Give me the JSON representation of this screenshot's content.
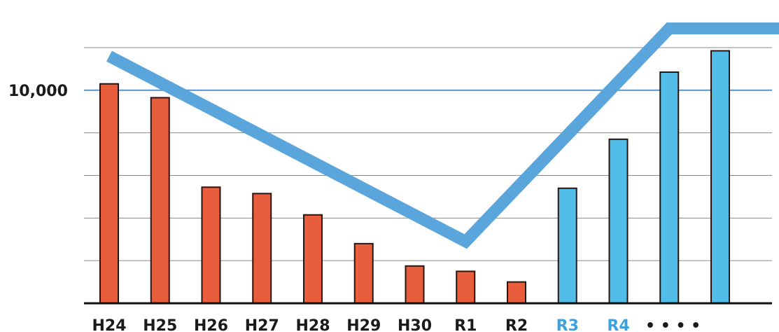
{
  "chart_data": {
    "type": "bar",
    "title": "",
    "xlabel": "",
    "ylabel": "",
    "categories": [
      "H24",
      "H25",
      "H26",
      "H27",
      "H28",
      "H29",
      "H30",
      "R1",
      "R2",
      "R3",
      "R4",
      "",
      ""
    ],
    "values": [
      10300,
      9650,
      5450,
      5150,
      4150,
      2800,
      1750,
      1500,
      1000,
      5400,
      7700,
      10850,
      11850
    ],
    "bar_colors": [
      "#e85d3c",
      "#e85d3c",
      "#e85d3c",
      "#e85d3c",
      "#e85d3c",
      "#e85d3c",
      "#e85d3c",
      "#e85d3c",
      "#e85d3c",
      "#52bde9",
      "#52bde9",
      "#52bde9",
      "#52bde9"
    ],
    "label_colors": [
      "#1a1a1a",
      "#1a1a1a",
      "#1a1a1a",
      "#1a1a1a",
      "#1a1a1a",
      "#1a1a1a",
      "#1a1a1a",
      "#1a1a1a",
      "#1a1a1a",
      "#3aa3df",
      "#3aa3df",
      "#1a1a1a",
      "#1a1a1a"
    ],
    "ylim": [
      0,
      12000
    ],
    "y_tick_labels": [
      {
        "value": 10000,
        "label": "10,000"
      }
    ],
    "gridlines": [
      2000,
      4000,
      6000,
      8000,
      10000,
      12000
    ],
    "highlight_gridline": 10000,
    "trailing_marker": "• • • •",
    "grid": true,
    "legend": "none",
    "trend_arrow": {
      "color": "#5aa6dc",
      "points": [
        {
          "x_index": 0,
          "y": 11600
        },
        {
          "x_index": 7,
          "y": 2900
        },
        {
          "x_index": 11.0,
          "y": 12900
        },
        {
          "x_index": 13.9,
          "y": 12900
        }
      ]
    },
    "colors": {
      "past": "#e85d3c",
      "future": "#52bde9",
      "bar_outline": "#2a1410",
      "grid": "#8a8a8a",
      "highlight_grid": "#5b9bd5",
      "baseline": "#111111"
    }
  }
}
